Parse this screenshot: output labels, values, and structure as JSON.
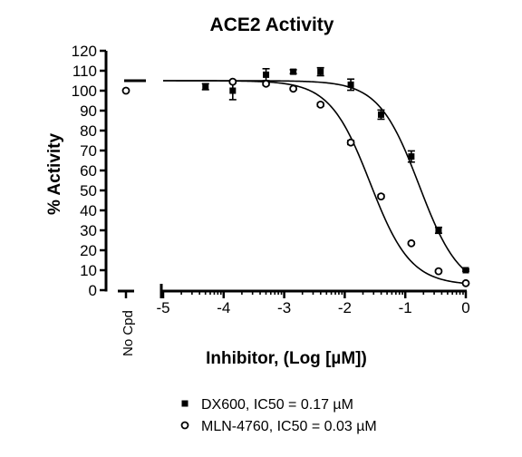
{
  "chart_data": {
    "type": "scatter",
    "title": "ACE2 Activity",
    "xlabel": "Inhibitor, (Log [µM])",
    "ylabel": "% Activity",
    "xlim": [
      -5,
      0
    ],
    "ylim": [
      0,
      120
    ],
    "xticks": [
      "-5",
      "-4",
      "-3",
      "-2",
      "-1",
      "0"
    ],
    "yticks": [
      "0",
      "10",
      "20",
      "30",
      "40",
      "50",
      "60",
      "70",
      "80",
      "90",
      "100",
      "110",
      "120"
    ],
    "control_label": "No Cpd",
    "grid": false,
    "legend_position": "bottom-center",
    "series": [
      {
        "name": "DX600, IC50 = 0.17 µM",
        "marker": "square",
        "control": {
          "y": 105,
          "err": 0.8
        },
        "x": [
          -4.3,
          -3.85,
          -3.3,
          -2.85,
          -2.4,
          -1.9,
          -1.4,
          -0.9,
          -0.45,
          0.0
        ],
        "y": [
          102,
          100,
          108,
          109.5,
          109.5,
          103,
          88,
          67,
          30,
          10
        ],
        "err": [
          1.5,
          4.5,
          3.0,
          1.0,
          2.0,
          2.8,
          2.3,
          2.8,
          1.5,
          0.5
        ],
        "fit": {
          "top": 105,
          "bottom": 0,
          "log_ic50": -0.77,
          "hill": 1.3
        }
      },
      {
        "name": "MLN-4760, IC50 = 0.03 µM",
        "marker": "circle",
        "control": {
          "y": 100,
          "err": 0.5
        },
        "x": [
          -3.85,
          -3.3,
          -2.85,
          -2.4,
          -1.9,
          -1.4,
          -0.9,
          -0.45,
          0.0
        ],
        "y": [
          104.5,
          103.5,
          101,
          93,
          74,
          47,
          23.5,
          9.5,
          3.5
        ],
        "err": [
          0.7,
          0.8,
          0.6,
          0.8,
          1.0,
          0.8,
          0.6,
          0.5,
          0.3
        ],
        "fit": {
          "top": 105,
          "bottom": 2.5,
          "log_ic50": -1.58,
          "hill": 1.3
        }
      }
    ]
  }
}
